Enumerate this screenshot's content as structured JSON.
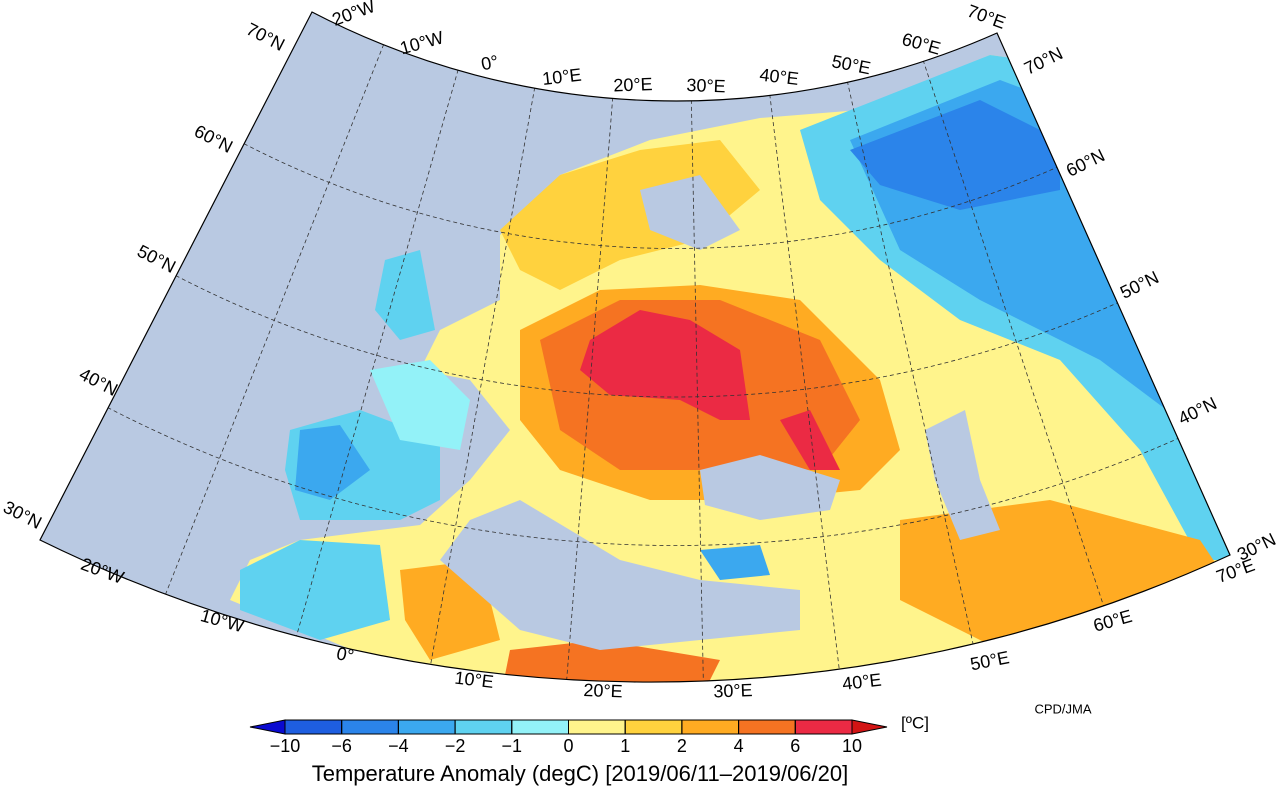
{
  "title": "Temperature Anomaly (degC) [2019/06/11–2019/06/20]",
  "credit": "CPD/JMA",
  "map": {
    "top_lon_labels": [
      "20°W",
      "10°W",
      "0°",
      "10°E",
      "20°E",
      "30°E",
      "40°E",
      "50°E",
      "60°E",
      "70°E"
    ],
    "bottom_lon_labels": [
      "20°W",
      "10°W",
      "0°",
      "10°E",
      "20°E",
      "30°E",
      "40°E",
      "50°E",
      "60°E",
      "70°E"
    ],
    "left_lat_labels": [
      "70°N",
      "60°N",
      "50°N",
      "40°N",
      "30°N"
    ],
    "right_lat_labels": [
      "70°N",
      "60°N",
      "50°N",
      "40°N",
      "30°N"
    ]
  },
  "colorbar": {
    "unit": "[ºC]",
    "ticks": [
      {
        "value": -10,
        "label": "−10"
      },
      {
        "value": -6,
        "label": "−6"
      },
      {
        "value": -4,
        "label": "−4"
      },
      {
        "value": -2,
        "label": "−2"
      },
      {
        "value": -1,
        "label": "−1"
      },
      0,
      1,
      2,
      4,
      6,
      10
    ],
    "colors": [
      "#0a0ad0",
      "#1e5ee0",
      "#2b84ea",
      "#3ba8ef",
      "#5fd2f0",
      "#93f2f8",
      "#fff48c",
      "#ffd23e",
      "#ffab22",
      "#f57322",
      "#eb2a44",
      "#d21414"
    ]
  }
}
